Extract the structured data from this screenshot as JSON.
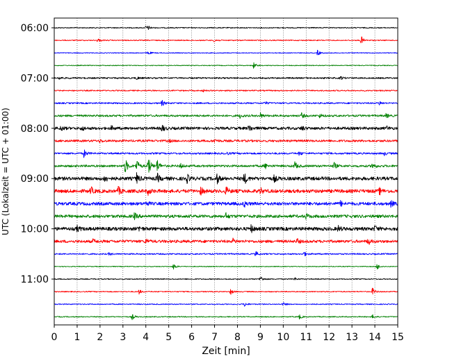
{
  "chart_data": {
    "type": "line",
    "title": "",
    "xlabel": "Zeit  [min]",
    "ylabel": "UTC (Lokalzeit = UTC + 01:00)",
    "xlim": [
      0,
      15
    ],
    "x_ticks": [
      "0",
      "1",
      "2",
      "3",
      "4",
      "5",
      "6",
      "7",
      "8",
      "9",
      "10",
      "11",
      "12",
      "13",
      "14",
      "15"
    ],
    "y_ticks": [
      "06:00",
      "07:00",
      "08:00",
      "09:00",
      "10:00",
      "11:00"
    ],
    "y_tick_rows": [
      0,
      4,
      8,
      12,
      16,
      20
    ],
    "grid": "vertical dotted lines at each minute",
    "line_colors": [
      "#000000",
      "#ff0000",
      "#0000ff",
      "#008000"
    ],
    "series": [
      {
        "start": "06:00",
        "color": "#000000",
        "level": 0.1,
        "events": [
          {
            "t": 4.0,
            "a": 0.35
          },
          {
            "t": 4.1,
            "a": 0.3
          }
        ]
      },
      {
        "start": "06:15",
        "color": "#ff0000",
        "level": 0.1,
        "events": [
          {
            "t": 1.9,
            "a": 0.45
          },
          {
            "t": 7.0,
            "a": 0.5
          },
          {
            "t": 13.4,
            "a": 0.9
          }
        ]
      },
      {
        "start": "06:30",
        "color": "#0000ff",
        "level": 0.08,
        "events": [
          {
            "t": 4.1,
            "a": 0.45
          },
          {
            "t": 11.5,
            "a": 0.6
          }
        ]
      },
      {
        "start": "06:45",
        "color": "#008000",
        "level": 0.08,
        "events": [
          {
            "t": 8.7,
            "a": 0.7
          }
        ]
      },
      {
        "start": "07:00",
        "color": "#000000",
        "level": 0.15,
        "events": [
          {
            "t": 0.2,
            "a": 0.35
          },
          {
            "t": 3.6,
            "a": 0.3
          },
          {
            "t": 12.5,
            "a": 0.35
          }
        ]
      },
      {
        "start": "07:15",
        "color": "#ff0000",
        "level": 0.12,
        "events": [
          {
            "t": 6.5,
            "a": 0.2
          }
        ]
      },
      {
        "start": "07:30",
        "color": "#0000ff",
        "level": 0.15,
        "events": [
          {
            "t": 4.7,
            "a": 0.6
          },
          {
            "t": 9.2,
            "a": 0.35
          },
          {
            "t": 14.2,
            "a": 0.4
          }
        ]
      },
      {
        "start": "07:45",
        "color": "#008000",
        "level": 0.2,
        "events": [
          {
            "t": 8.1,
            "a": 0.45
          },
          {
            "t": 9.0,
            "a": 0.5
          },
          {
            "t": 10.8,
            "a": 0.55
          },
          {
            "t": 11.6,
            "a": 0.4
          },
          {
            "t": 14.5,
            "a": 0.45
          }
        ]
      },
      {
        "start": "08:00",
        "color": "#000000",
        "level": 0.28,
        "events": [
          {
            "t": 0.3,
            "a": 0.5
          },
          {
            "t": 1.2,
            "a": 0.45
          },
          {
            "t": 2.5,
            "a": 0.4
          },
          {
            "t": 4.7,
            "a": 0.75
          },
          {
            "t": 8.5,
            "a": 0.8
          },
          {
            "t": 10.8,
            "a": 0.5
          },
          {
            "t": 14.5,
            "a": 0.4
          }
        ]
      },
      {
        "start": "08:15",
        "color": "#ff0000",
        "level": 0.22,
        "events": [
          {
            "t": 2.0,
            "a": 0.3
          },
          {
            "t": 5.0,
            "a": 0.3
          },
          {
            "t": 7.0,
            "a": 0.35
          }
        ]
      },
      {
        "start": "08:30",
        "color": "#0000ff",
        "level": 0.18,
        "events": [
          {
            "t": 1.3,
            "a": 0.85
          },
          {
            "t": 7.5,
            "a": 0.35
          },
          {
            "t": 10.7,
            "a": 0.4
          },
          {
            "t": 14.4,
            "a": 0.35
          }
        ]
      },
      {
        "start": "08:45",
        "color": "#008000",
        "level": 0.22,
        "events": [
          {
            "t": 3.1,
            "a": 1.6
          },
          {
            "t": 3.6,
            "a": 1.4
          },
          {
            "t": 4.1,
            "a": 2.2
          },
          {
            "t": 4.5,
            "a": 1.3
          },
          {
            "t": 5.5,
            "a": 0.5
          },
          {
            "t": 9.2,
            "a": 0.6
          },
          {
            "t": 10.5,
            "a": 0.9
          },
          {
            "t": 12.2,
            "a": 0.8
          },
          {
            "t": 13.9,
            "a": 0.8
          }
        ]
      },
      {
        "start": "09:00",
        "color": "#000000",
        "level": 0.35,
        "events": [
          {
            "t": 2.2,
            "a": 0.8
          },
          {
            "t": 3.6,
            "a": 1.0
          },
          {
            "t": 4.5,
            "a": 0.9
          },
          {
            "t": 5.8,
            "a": 0.8
          },
          {
            "t": 7.1,
            "a": 1.0
          },
          {
            "t": 8.3,
            "a": 1.2
          },
          {
            "t": 9.6,
            "a": 0.6
          }
        ]
      },
      {
        "start": "09:15",
        "color": "#ff0000",
        "level": 0.35,
        "events": [
          {
            "t": 1.6,
            "a": 0.8
          },
          {
            "t": 2.8,
            "a": 0.8
          },
          {
            "t": 4.1,
            "a": 0.7
          },
          {
            "t": 6.4,
            "a": 0.7
          },
          {
            "t": 7.5,
            "a": 0.8
          },
          {
            "t": 9.0,
            "a": 0.6
          },
          {
            "t": 14.2,
            "a": 0.6
          }
        ]
      },
      {
        "start": "09:30",
        "color": "#0000ff",
        "level": 0.32,
        "events": [
          {
            "t": 4.0,
            "a": 0.5
          },
          {
            "t": 8.3,
            "a": 0.55
          },
          {
            "t": 12.5,
            "a": 0.5
          },
          {
            "t": 14.7,
            "a": 0.55
          }
        ]
      },
      {
        "start": "09:45",
        "color": "#008000",
        "level": 0.3,
        "events": [
          {
            "t": 3.5,
            "a": 0.6
          },
          {
            "t": 7.5,
            "a": 0.55
          },
          {
            "t": 11.0,
            "a": 0.5
          }
        ]
      },
      {
        "start": "10:00",
        "color": "#000000",
        "level": 0.35,
        "events": [
          {
            "t": 1.0,
            "a": 0.55
          },
          {
            "t": 3.7,
            "a": 0.5
          },
          {
            "t": 8.6,
            "a": 0.7
          },
          {
            "t": 12.4,
            "a": 0.5
          },
          {
            "t": 14.0,
            "a": 0.6
          }
        ]
      },
      {
        "start": "10:15",
        "color": "#ff0000",
        "level": 0.28,
        "events": [
          {
            "t": 1.7,
            "a": 0.4
          },
          {
            "t": 4.0,
            "a": 0.5
          },
          {
            "t": 7.8,
            "a": 0.45
          },
          {
            "t": 10.6,
            "a": 0.5
          },
          {
            "t": 13.7,
            "a": 0.7
          }
        ]
      },
      {
        "start": "10:30",
        "color": "#0000ff",
        "level": 0.14,
        "events": [
          {
            "t": 2.4,
            "a": 0.3
          },
          {
            "t": 8.8,
            "a": 0.5
          },
          {
            "t": 10.9,
            "a": 0.5
          }
        ]
      },
      {
        "start": "10:45",
        "color": "#008000",
        "level": 0.08,
        "events": [
          {
            "t": 5.2,
            "a": 0.7
          },
          {
            "t": 14.1,
            "a": 0.7
          }
        ]
      },
      {
        "start": "11:00",
        "color": "#000000",
        "level": 0.1,
        "events": [
          {
            "t": 9.0,
            "a": 0.7
          },
          {
            "t": 10.5,
            "a": 0.3
          }
        ]
      },
      {
        "start": "11:15",
        "color": "#ff0000",
        "level": 0.1,
        "events": [
          {
            "t": 3.7,
            "a": 0.5
          },
          {
            "t": 7.7,
            "a": 0.6
          },
          {
            "t": 13.9,
            "a": 0.8
          }
        ]
      },
      {
        "start": "11:30",
        "color": "#0000ff",
        "level": 0.1,
        "events": [
          {
            "t": 8.3,
            "a": 0.5
          },
          {
            "t": 10.0,
            "a": 0.35
          }
        ]
      },
      {
        "start": "11:45",
        "color": "#008000",
        "level": 0.1,
        "events": [
          {
            "t": 3.4,
            "a": 0.6
          },
          {
            "t": 10.7,
            "a": 0.5
          },
          {
            "t": 13.9,
            "a": 0.4
          }
        ]
      }
    ]
  }
}
